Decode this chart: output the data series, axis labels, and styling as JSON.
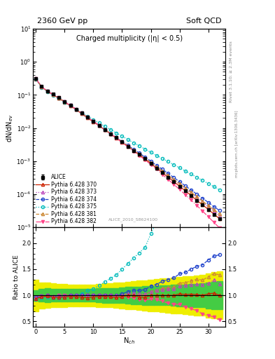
{
  "title_left": "2360 GeV pp",
  "title_right": "Soft QCD",
  "main_title": "Charged multiplicity (|η| < 0.5)",
  "ylabel_main": "dN/dN$_{ev}$",
  "ylabel_ratio": "Ratio to ALICE",
  "xlabel": "N$_{ch}$",
  "watermark": "ALICE_2010_S8624100",
  "rivet_label": "Rivet 3.1.10; ≥ 2.3M events",
  "mcplots_label": "mcplots.cern.ch [arXiv:1306.3436]",
  "ylim_main": [
    1e-05,
    10
  ],
  "ylim_ratio": [
    0.4,
    2.3
  ],
  "xlim": [
    -0.5,
    33
  ],
  "alice_x": [
    0,
    1,
    2,
    3,
    4,
    5,
    6,
    7,
    8,
    9,
    10,
    11,
    12,
    13,
    14,
    15,
    16,
    17,
    18,
    19,
    20,
    21,
    22,
    23,
    24,
    25,
    26,
    27,
    28,
    29,
    30,
    31,
    32
  ],
  "alice_y": [
    0.32,
    0.18,
    0.13,
    0.105,
    0.082,
    0.063,
    0.048,
    0.037,
    0.028,
    0.021,
    0.016,
    0.012,
    0.009,
    0.0068,
    0.0051,
    0.0038,
    0.0028,
    0.0021,
    0.0016,
    0.0012,
    0.00085,
    0.00062,
    0.00045,
    0.00033,
    0.00024,
    0.00017,
    0.000125,
    9e-05,
    6.5e-05,
    4.8e-05,
    3.4e-05,
    2.4e-05,
    1.8e-05
  ],
  "alice_yerr": [
    0.012,
    0.007,
    0.005,
    0.004,
    0.003,
    0.002,
    0.002,
    0.001,
    0.001,
    0.001,
    0.0006,
    0.0005,
    0.0004,
    0.0003,
    0.00022,
    0.00017,
    0.00013,
    9e-05,
    7e-05,
    5e-05,
    3.8e-05,
    2.8e-05,
    2.1e-05,
    1.5e-05,
    1.1e-05,
    8e-06,
    6e-06,
    4.5e-06,
    3.2e-06,
    2.4e-06,
    1.8e-06,
    1.3e-06,
    1e-06
  ],
  "p370_x": [
    0,
    1,
    2,
    3,
    4,
    5,
    6,
    7,
    8,
    9,
    10,
    11,
    12,
    13,
    14,
    15,
    16,
    17,
    18,
    19,
    20,
    21,
    22,
    23,
    24,
    25,
    26,
    27,
    28,
    29,
    30,
    31,
    32
  ],
  "p370_y": [
    0.3,
    0.175,
    0.128,
    0.101,
    0.079,
    0.061,
    0.047,
    0.036,
    0.027,
    0.02,
    0.0155,
    0.0117,
    0.0088,
    0.0066,
    0.0049,
    0.0037,
    0.0028,
    0.0021,
    0.00155,
    0.00115,
    0.00085,
    0.00062,
    0.00045,
    0.00033,
    0.00024,
    0.000175,
    0.000127,
    9.2e-05,
    6.6e-05,
    4.8e-05,
    3.5e-05,
    2.5e-05,
    1.8e-05
  ],
  "p373_x": [
    0,
    1,
    2,
    3,
    4,
    5,
    6,
    7,
    8,
    9,
    10,
    11,
    12,
    13,
    14,
    15,
    16,
    17,
    18,
    19,
    20,
    21,
    22,
    23,
    24,
    25,
    26,
    27,
    28,
    29,
    30,
    31,
    32
  ],
  "p373_y": [
    0.31,
    0.177,
    0.13,
    0.103,
    0.081,
    0.062,
    0.048,
    0.037,
    0.028,
    0.021,
    0.016,
    0.012,
    0.009,
    0.0068,
    0.0051,
    0.0038,
    0.0029,
    0.0022,
    0.00165,
    0.00123,
    0.00091,
    0.00068,
    0.0005,
    0.00037,
    0.00027,
    0.0002,
    0.000148,
    0.000108,
    7.9e-05,
    5.8e-05,
    4.2e-05,
    3.1e-05,
    2.2e-05
  ],
  "p374_x": [
    0,
    1,
    2,
    3,
    4,
    5,
    6,
    7,
    8,
    9,
    10,
    11,
    12,
    13,
    14,
    15,
    16,
    17,
    18,
    19,
    20,
    21,
    22,
    23,
    24,
    25,
    26,
    27,
    28,
    29,
    30,
    31,
    32
  ],
  "p374_y": [
    0.31,
    0.177,
    0.13,
    0.103,
    0.081,
    0.062,
    0.048,
    0.037,
    0.028,
    0.021,
    0.016,
    0.012,
    0.009,
    0.0068,
    0.0051,
    0.0039,
    0.003,
    0.0023,
    0.00175,
    0.00133,
    0.001,
    0.00075,
    0.00057,
    0.00043,
    0.00032,
    0.00024,
    0.00018,
    0.000135,
    0.000101,
    7.6e-05,
    5.7e-05,
    4.2e-05,
    3.2e-05
  ],
  "p375_x": [
    0,
    1,
    2,
    3,
    4,
    5,
    6,
    7,
    8,
    9,
    10,
    11,
    12,
    13,
    14,
    15,
    16,
    17,
    18,
    19,
    20,
    21,
    22,
    23,
    24,
    25,
    26,
    27,
    28,
    29,
    30,
    31,
    32
  ],
  "p375_y": [
    0.295,
    0.17,
    0.125,
    0.099,
    0.078,
    0.061,
    0.048,
    0.037,
    0.029,
    0.023,
    0.018,
    0.0143,
    0.0113,
    0.009,
    0.0071,
    0.0057,
    0.0045,
    0.0036,
    0.0029,
    0.0023,
    0.00185,
    0.00149,
    0.0012,
    0.00097,
    0.00078,
    0.000628,
    0.000505,
    0.000406,
    0.000326,
    0.000262,
    0.00021,
    0.000169,
    0.000135
  ],
  "p381_x": [
    0,
    1,
    2,
    3,
    4,
    5,
    6,
    7,
    8,
    9,
    10,
    11,
    12,
    13,
    14,
    15,
    16,
    17,
    18,
    19,
    20,
    21,
    22,
    23,
    24,
    25,
    26,
    27,
    28,
    29,
    30,
    31,
    32
  ],
  "p381_y": [
    0.31,
    0.177,
    0.13,
    0.103,
    0.081,
    0.062,
    0.048,
    0.037,
    0.028,
    0.021,
    0.016,
    0.012,
    0.009,
    0.0068,
    0.0051,
    0.0038,
    0.0029,
    0.00215,
    0.00162,
    0.00121,
    0.00091,
    0.00068,
    0.00051,
    0.00038,
    0.00028,
    0.00021,
    0.000155,
    0.000115,
    8.5e-05,
    6.2e-05,
    4.6e-05,
    3.4e-05,
    2.5e-05
  ],
  "p382_x": [
    0,
    1,
    2,
    3,
    4,
    5,
    6,
    7,
    8,
    9,
    10,
    11,
    12,
    13,
    14,
    15,
    16,
    17,
    18,
    19,
    20,
    21,
    22,
    23,
    24,
    25,
    26,
    27,
    28,
    29,
    30,
    31,
    32
  ],
  "p382_y": [
    0.31,
    0.177,
    0.13,
    0.103,
    0.082,
    0.063,
    0.048,
    0.037,
    0.028,
    0.021,
    0.016,
    0.012,
    0.009,
    0.0068,
    0.005,
    0.0037,
    0.0027,
    0.002,
    0.00148,
    0.00109,
    0.00079,
    0.00057,
    0.0004,
    0.00028,
    0.0002,
    0.00014,
    9.7e-05,
    6.7e-05,
    4.6e-05,
    3.1e-05,
    2.1e-05,
    1.4e-05,
    9.5e-06
  ],
  "green_band_low": [
    0.9,
    0.88,
    0.87,
    0.88,
    0.88,
    0.88,
    0.88,
    0.88,
    0.88,
    0.88,
    0.88,
    0.87,
    0.86,
    0.86,
    0.86,
    0.85,
    0.84,
    0.83,
    0.83,
    0.82,
    0.82,
    0.82,
    0.81,
    0.81,
    0.8,
    0.79,
    0.79,
    0.78,
    0.78,
    0.77,
    0.75,
    0.74,
    0.73
  ],
  "green_band_high": [
    1.1,
    1.12,
    1.13,
    1.12,
    1.12,
    1.12,
    1.12,
    1.12,
    1.12,
    1.12,
    1.12,
    1.13,
    1.14,
    1.14,
    1.14,
    1.15,
    1.16,
    1.17,
    1.17,
    1.18,
    1.18,
    1.18,
    1.19,
    1.19,
    1.2,
    1.21,
    1.21,
    1.22,
    1.22,
    1.23,
    1.25,
    1.26,
    1.27
  ],
  "yellow_band_low": [
    0.7,
    0.75,
    0.76,
    0.77,
    0.78,
    0.78,
    0.79,
    0.79,
    0.79,
    0.79,
    0.79,
    0.78,
    0.77,
    0.77,
    0.76,
    0.75,
    0.74,
    0.73,
    0.72,
    0.71,
    0.7,
    0.69,
    0.68,
    0.67,
    0.66,
    0.65,
    0.64,
    0.63,
    0.62,
    0.61,
    0.58,
    0.56,
    0.54
  ],
  "yellow_band_high": [
    1.3,
    1.25,
    1.24,
    1.23,
    1.22,
    1.22,
    1.21,
    1.21,
    1.21,
    1.21,
    1.21,
    1.22,
    1.23,
    1.23,
    1.24,
    1.25,
    1.26,
    1.27,
    1.28,
    1.29,
    1.3,
    1.31,
    1.32,
    1.33,
    1.34,
    1.35,
    1.36,
    1.37,
    1.38,
    1.39,
    1.42,
    1.44,
    1.46
  ],
  "color_370": "#CC2200",
  "color_373": "#BB44BB",
  "color_374": "#2244CC",
  "color_375": "#00BBBB",
  "color_381": "#CC8833",
  "color_382": "#FF4488"
}
